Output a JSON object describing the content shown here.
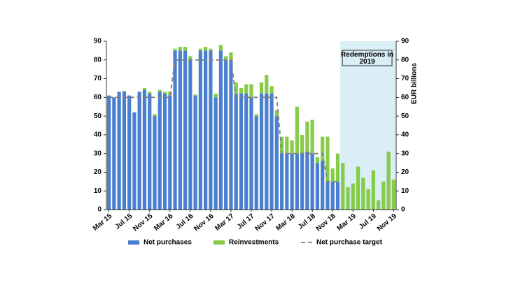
{
  "chart_data": {
    "type": "bar",
    "y2_label": "EUR billions",
    "annotation": "Redemptions in\n2019",
    "categories": [
      "Mar 15",
      null,
      null,
      null,
      "Jul 15",
      null,
      null,
      null,
      "Nov 15",
      null,
      null,
      null,
      "Mar 16",
      null,
      null,
      null,
      "Jul 16",
      null,
      null,
      null,
      "Nov 16",
      null,
      null,
      null,
      "Mar 17",
      null,
      null,
      null,
      "Jul 17",
      null,
      null,
      null,
      "Nov 17",
      null,
      null,
      null,
      "Mar 18",
      null,
      null,
      null,
      "Jul 18",
      null,
      null,
      null,
      "Nov 18",
      null,
      null,
      null,
      "Mar 19",
      null,
      null,
      null,
      "Jul 19",
      null,
      null,
      null,
      "Nov 19"
    ],
    "series": [
      {
        "name": "Net purchases",
        "color": "#4a7fd0",
        "stack": "a",
        "values": [
          61,
          60,
          63,
          63,
          61,
          52,
          63,
          64,
          62,
          50,
          63,
          62,
          61,
          85,
          85,
          85,
          80,
          61,
          85,
          85,
          85,
          60,
          85,
          80,
          80,
          62,
          62,
          62,
          60,
          50,
          62,
          62,
          62,
          50,
          30,
          30,
          30,
          30,
          30,
          31,
          30,
          25,
          26,
          15,
          15,
          15,
          0,
          0,
          0,
          0,
          0,
          0,
          0,
          0,
          0,
          0,
          0
        ]
      },
      {
        "name": "Reinvestments",
        "color": "#86cc4a",
        "stack": "a",
        "values": [
          0,
          0,
          0,
          0.5,
          0,
          0,
          0,
          1,
          1,
          1,
          1,
          1,
          2,
          1,
          2,
          2,
          2,
          0.5,
          1,
          2,
          1,
          2,
          3,
          2,
          4,
          6,
          3,
          5,
          7,
          1,
          6,
          10,
          4,
          3,
          9,
          9,
          7,
          25,
          10,
          16,
          18,
          3,
          13,
          24,
          7,
          15,
          25,
          12,
          14,
          23,
          17,
          11,
          21,
          5,
          15,
          31,
          16
        ]
      },
      {
        "name": "Net purchase target",
        "color": "#7f7f7f",
        "kind": "dashed-line",
        "values": [
          60,
          60,
          60,
          60,
          60,
          60,
          60,
          60,
          60,
          60,
          60,
          60,
          60,
          80,
          80,
          80,
          80,
          80,
          80,
          80,
          80,
          80,
          80,
          80,
          80,
          60,
          60,
          60,
          60,
          60,
          60,
          60,
          60,
          60,
          30,
          30,
          30,
          30,
          30,
          30,
          30,
          30,
          30,
          15,
          15,
          15,
          null,
          null,
          null,
          null,
          null,
          null,
          null,
          null,
          null,
          null,
          null
        ]
      }
    ],
    "ylim": [
      0,
      90
    ],
    "yticks": [
      0,
      10,
      20,
      30,
      40,
      50,
      60,
      70,
      80,
      90
    ],
    "y2lim": [
      0,
      90
    ],
    "y2ticks": [
      0,
      10,
      20,
      30,
      40,
      50,
      60,
      70,
      80,
      90
    ],
    "shade_color": "#d9eef5",
    "legend": "bottom"
  }
}
